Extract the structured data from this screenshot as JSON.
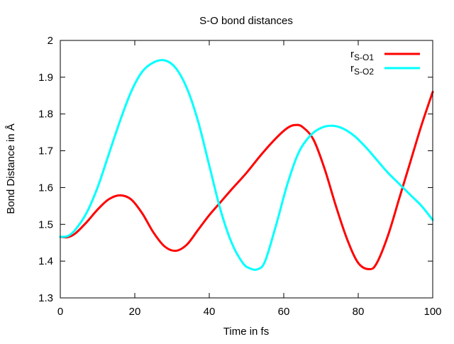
{
  "chart_data": {
    "type": "line",
    "title": "S-O bond distances",
    "xlabel": "Time in fs",
    "ylabel": "Bond Distance in Å",
    "xlim": [
      0,
      100
    ],
    "ylim": [
      1.3,
      2.0
    ],
    "xticks": [
      "0",
      "20",
      "40",
      "60",
      "80",
      "100"
    ],
    "yticks": [
      "1.3",
      "1.4",
      "1.5",
      "1.6",
      "1.7",
      "1.8",
      "1.9",
      "2"
    ],
    "grid": false,
    "legend_position": "top-right",
    "series": [
      {
        "name": "r",
        "subscript": "S-O1",
        "color": "#ff0000",
        "x": [
          0,
          2,
          4,
          7,
          10,
          13,
          16,
          19,
          22,
          25,
          28,
          31,
          34,
          37,
          40,
          43,
          46,
          50,
          54,
          58,
          61,
          63,
          65,
          68,
          71,
          74,
          77,
          80,
          83,
          85,
          88,
          91,
          94,
          97,
          100
        ],
        "y": [
          1.466,
          1.465,
          1.475,
          1.505,
          1.54,
          1.568,
          1.579,
          1.568,
          1.53,
          1.478,
          1.44,
          1.428,
          1.445,
          1.485,
          1.525,
          1.56,
          1.595,
          1.64,
          1.69,
          1.735,
          1.762,
          1.77,
          1.765,
          1.73,
          1.65,
          1.55,
          1.46,
          1.395,
          1.378,
          1.395,
          1.47,
          1.57,
          1.67,
          1.77,
          1.86
        ]
      },
      {
        "name": "r",
        "subscript": "S-O2",
        "color": "#00ffff",
        "x": [
          0,
          2,
          4,
          7,
          10,
          13,
          16,
          19,
          22,
          25,
          28,
          31,
          34,
          37,
          40,
          43,
          46,
          49,
          51,
          53,
          55,
          58,
          61,
          64,
          67,
          70,
          73,
          76,
          79,
          82,
          85,
          88,
          91,
          94,
          97,
          100
        ],
        "y": [
          1.466,
          1.468,
          1.485,
          1.53,
          1.6,
          1.69,
          1.78,
          1.86,
          1.915,
          1.94,
          1.946,
          1.925,
          1.87,
          1.78,
          1.66,
          1.54,
          1.45,
          1.395,
          1.38,
          1.378,
          1.4,
          1.5,
          1.61,
          1.695,
          1.74,
          1.762,
          1.768,
          1.76,
          1.74,
          1.71,
          1.675,
          1.64,
          1.61,
          1.58,
          1.55,
          1.512
        ]
      }
    ]
  }
}
